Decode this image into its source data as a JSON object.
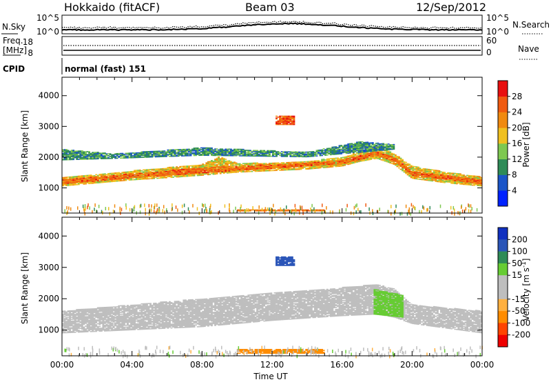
{
  "header": {
    "station": "Hokkaido (fitACF)",
    "beam": "Beam 03",
    "date": "12/Sep/2012"
  },
  "noise_panel": {
    "left_label": "N.Sky",
    "right_label": "N.Search",
    "left_ticks": [
      "10^5",
      "10^0"
    ],
    "right_ticks": [
      "10^5",
      "10^0"
    ]
  },
  "freq_panel": {
    "left_label_line1": "Freq.",
    "left_label_line2": "[MHz]",
    "right_label": "Nave",
    "left_ticks": [
      "18",
      "8"
    ],
    "right_ticks": [
      "60",
      "0"
    ]
  },
  "cpid": {
    "label": "CPID",
    "value": "normal (fast) 151"
  },
  "colors": {
    "power_scale": [
      "#0022ff",
      "#1a55c8",
      "#2e8b57",
      "#7ec850",
      "#f0c020",
      "#f08a10",
      "#f05a10",
      "#e81010"
    ],
    "velocity_scale": [
      "#ee0000",
      "#ff4400",
      "#ff8c00",
      "#ffb040",
      "#bebebe",
      "#bebebe",
      "#66cc33",
      "#2e8b57",
      "#2a55b8",
      "#1030c0"
    ]
  },
  "chart_data": [
    {
      "type": "heatmap",
      "name": "power",
      "ylabel": "Slant Range [km]",
      "xlabel": "",
      "x_ticks": [
        "00:00",
        "04:00",
        "08:00",
        "12:00",
        "16:00",
        "20:00",
        "00:00"
      ],
      "xlim_hours": [
        0,
        24
      ],
      "y_ticks": [
        1000,
        2000,
        3000,
        4000
      ],
      "ylim": [
        180,
        4600
      ],
      "colorbar": {
        "label": "Power [dB]",
        "ticks": [
          "4",
          "8",
          "12",
          "16",
          "20",
          "24",
          "28"
        ],
        "range": [
          0,
          32
        ]
      },
      "bands": [
        {
          "level": 18,
          "points": [
            [
              0,
              1050,
              1350
            ],
            [
              2,
              1150,
              1450
            ],
            [
              4,
              1250,
              1550
            ],
            [
              6,
              1320,
              1650
            ],
            [
              8,
              1400,
              1750
            ],
            [
              9,
              1450,
              2000
            ],
            [
              10,
              1500,
              1800
            ],
            [
              12,
              1550,
              1800
            ],
            [
              14,
              1600,
              1850
            ],
            [
              16,
              1700,
              2000
            ],
            [
              17,
              1850,
              2150
            ],
            [
              18,
              1950,
              2350
            ],
            [
              19,
              1750,
              2100
            ],
            [
              20,
              1300,
              1700
            ],
            [
              22,
              1150,
              1500
            ],
            [
              24,
              1050,
              1350
            ]
          ]
        },
        {
          "level": 25,
          "points": [
            [
              0,
              1120,
              1250
            ],
            [
              4,
              1320,
              1450
            ],
            [
              8,
              1480,
              1650
            ],
            [
              12,
              1630,
              1750
            ],
            [
              16,
              1780,
              1900
            ],
            [
              18,
              2050,
              2200
            ],
            [
              19,
              1850,
              2000
            ],
            [
              20,
              1400,
              1550
            ],
            [
              24,
              1120,
              1250
            ]
          ]
        },
        {
          "level": 10,
          "points": [
            [
              0,
              1900,
              2250
            ],
            [
              3,
              1950,
              2100
            ],
            [
              8,
              2050,
              2300
            ],
            [
              14,
              2000,
              2150
            ],
            [
              17,
              2150,
              2500
            ],
            [
              19,
              2250,
              2400
            ]
          ]
        },
        {
          "level": 26,
          "points": [
            [
              12.2,
              3050,
              3330
            ],
            [
              13.3,
              3050,
              3330
            ]
          ]
        },
        {
          "level": 24,
          "points": [
            [
              10,
              240,
              300
            ],
            [
              15,
              240,
              300
            ]
          ]
        }
      ]
    },
    {
      "type": "heatmap",
      "name": "velocity",
      "ylabel": "Slant Range [km]",
      "xlabel": "Time UT",
      "x_ticks": [
        "00:00",
        "04:00",
        "08:00",
        "12:00",
        "16:00",
        "20:00",
        "00:00"
      ],
      "xlim_hours": [
        0,
        24
      ],
      "y_ticks": [
        1000,
        2000,
        3000,
        4000
      ],
      "ylim": [
        180,
        4600
      ],
      "colorbar": {
        "label": "Velocity [m s^-1]",
        "ticks": [
          "200",
          "100",
          "50",
          "15",
          "-15",
          "-50",
          "-100",
          "-200"
        ],
        "range": [
          -250,
          250
        ]
      },
      "bands": [
        {
          "level": 0,
          "points": [
            [
              0,
              900,
              1600
            ],
            [
              4,
              1000,
              1800
            ],
            [
              8,
              1100,
              2000
            ],
            [
              12,
              1300,
              2200
            ],
            [
              16,
              1450,
              2350
            ],
            [
              18,
              1500,
              2450
            ],
            [
              19,
              1400,
              2300
            ],
            [
              20,
              1200,
              1800
            ],
            [
              24,
              900,
              1600
            ]
          ]
        },
        {
          "level": 40,
          "points": [
            [
              17.8,
              1500,
              2300
            ],
            [
              19.5,
              1400,
              2100
            ]
          ]
        },
        {
          "level": 150,
          "points": [
            [
              12.2,
              3050,
              3330
            ],
            [
              13.3,
              3050,
              3330
            ]
          ]
        },
        {
          "level": -60,
          "points": [
            [
              10,
              250,
              400
            ],
            [
              15,
              250,
              400
            ]
          ]
        }
      ]
    }
  ]
}
